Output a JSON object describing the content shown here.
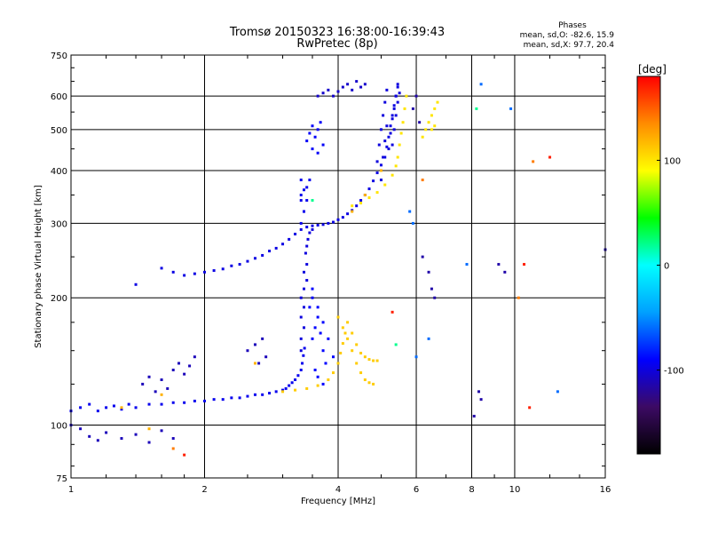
{
  "chart_data": {
    "type": "scatter",
    "title": "Tromsø 20150323 16:38:00-16:39:43",
    "subtitle": "RwPretec (8p)",
    "xlabel": "Frequency [MHz]",
    "ylabel": "Stationary phase Virtual Height [km]",
    "x_scale": "log",
    "y_scale": "log",
    "xlim": [
      1,
      16
    ],
    "ylim": [
      75,
      750
    ],
    "x_ticks": [
      {
        "value": 1,
        "label": "1"
      },
      {
        "value": 2,
        "label": "2"
      },
      {
        "value": 4,
        "label": "4"
      },
      {
        "value": 6,
        "label": "6"
      },
      {
        "value": 8,
        "label": "8"
      },
      {
        "value": 10,
        "label": "10"
      },
      {
        "value": 16,
        "label": "16"
      }
    ],
    "y_ticks": [
      {
        "value": 75,
        "label": "75"
      },
      {
        "value": 100,
        "label": "100"
      },
      {
        "value": 200,
        "label": "200"
      },
      {
        "value": 300,
        "label": "300"
      },
      {
        "value": 400,
        "label": "400"
      },
      {
        "value": 500,
        "label": "500"
      },
      {
        "value": 600,
        "label": "600"
      },
      {
        "value": 750,
        "label": "750"
      }
    ],
    "grid": true,
    "stats": {
      "heading": "Phases",
      "o_line": "mean, sd,O: -82.6, 15.9",
      "x_line": "mean, sd,X:  97.7, 20.4"
    },
    "colorbar": {
      "label": "[deg]",
      "range": [
        -180,
        180
      ],
      "ticks": [
        {
          "value": 100,
          "label": "100"
        },
        {
          "value": 0,
          "label": "0"
        },
        {
          "value": -100,
          "label": "-100"
        }
      ],
      "stops": [
        "#000000",
        "#3c0a64",
        "#0000ff",
        "#00a0ff",
        "#00ffff",
        "#00ff00",
        "#ffff00",
        "#ff8c00",
        "#ff0000"
      ]
    },
    "series": [
      {
        "phase": -95,
        "points": [
          [
            1.0,
            108
          ],
          [
            1.05,
            110
          ],
          [
            1.1,
            112
          ],
          [
            1.15,
            108
          ],
          [
            1.2,
            110
          ],
          [
            1.25,
            111
          ],
          [
            1.3,
            109
          ],
          [
            1.35,
            112
          ],
          [
            1.4,
            110
          ],
          [
            1.5,
            112
          ],
          [
            1.6,
            112
          ],
          [
            1.7,
            113
          ],
          [
            1.8,
            113
          ],
          [
            1.9,
            114
          ],
          [
            2.0,
            114
          ],
          [
            2.1,
            115
          ],
          [
            2.2,
            115
          ],
          [
            2.3,
            116
          ],
          [
            2.4,
            116
          ],
          [
            2.5,
            117
          ],
          [
            2.6,
            118
          ],
          [
            2.7,
            118
          ],
          [
            2.8,
            119
          ],
          [
            2.9,
            120
          ],
          [
            3.0,
            121
          ],
          [
            3.05,
            122
          ],
          [
            3.1,
            124
          ],
          [
            3.15,
            126
          ],
          [
            3.2,
            128
          ],
          [
            3.25,
            131
          ],
          [
            3.3,
            135
          ],
          [
            3.32,
            140
          ],
          [
            3.34,
            146
          ],
          [
            3.36,
            152
          ]
        ]
      },
      {
        "phase": -100,
        "points": [
          [
            3.3,
            150
          ],
          [
            3.3,
            160
          ],
          [
            3.35,
            170
          ],
          [
            3.3,
            180
          ],
          [
            3.35,
            190
          ],
          [
            3.3,
            200
          ],
          [
            3.35,
            210
          ],
          [
            3.4,
            220
          ],
          [
            3.35,
            230
          ],
          [
            3.4,
            240
          ],
          [
            3.38,
            255
          ],
          [
            3.4,
            265
          ],
          [
            3.42,
            275
          ],
          [
            3.45,
            285
          ],
          [
            3.5,
            290
          ]
        ]
      },
      {
        "phase": -90,
        "points": [
          [
            3.5,
            160
          ],
          [
            3.55,
            170
          ],
          [
            3.6,
            180
          ],
          [
            3.65,
            165
          ],
          [
            3.7,
            150
          ],
          [
            3.75,
            140
          ],
          [
            3.5,
            200
          ],
          [
            3.6,
            190
          ],
          [
            3.7,
            175
          ],
          [
            3.8,
            160
          ],
          [
            3.9,
            145
          ],
          [
            3.55,
            135
          ],
          [
            3.6,
            130
          ],
          [
            3.7,
            125
          ],
          [
            3.45,
            190
          ],
          [
            3.5,
            210
          ]
        ]
      },
      {
        "phase": -98,
        "points": [
          [
            1.4,
            215
          ],
          [
            1.6,
            235
          ],
          [
            1.7,
            230
          ],
          [
            1.8,
            226
          ],
          [
            1.9,
            228
          ],
          [
            2.0,
            230
          ],
          [
            2.1,
            232
          ],
          [
            2.2,
            234
          ],
          [
            2.3,
            238
          ],
          [
            2.4,
            240
          ],
          [
            2.5,
            244
          ],
          [
            2.6,
            248
          ],
          [
            2.7,
            252
          ],
          [
            2.8,
            258
          ],
          [
            2.9,
            262
          ],
          [
            3.0,
            268
          ],
          [
            3.1,
            275
          ],
          [
            3.2,
            283
          ],
          [
            3.3,
            290
          ],
          [
            3.4,
            294
          ],
          [
            3.5,
            296
          ],
          [
            3.6,
            297
          ],
          [
            3.7,
            298
          ],
          [
            3.8,
            300
          ],
          [
            3.9,
            302
          ],
          [
            4.0,
            306
          ],
          [
            4.1,
            310
          ],
          [
            4.2,
            316
          ],
          [
            4.3,
            322
          ],
          [
            4.4,
            330
          ],
          [
            4.5,
            340
          ],
          [
            4.6,
            350
          ],
          [
            4.7,
            362
          ],
          [
            4.8,
            378
          ],
          [
            4.9,
            395
          ],
          [
            5.0,
            412
          ],
          [
            5.1,
            430
          ],
          [
            5.15,
            455
          ],
          [
            5.2,
            480
          ],
          [
            5.25,
            510
          ],
          [
            5.3,
            540
          ],
          [
            5.35,
            570
          ],
          [
            5.4,
            600
          ],
          [
            5.45,
            630
          ]
        ]
      },
      {
        "phase": -95,
        "points": [
          [
            3.3,
            300
          ],
          [
            3.35,
            320
          ],
          [
            3.3,
            340
          ],
          [
            3.35,
            360
          ],
          [
            3.3,
            380
          ],
          [
            3.35,
            320
          ],
          [
            3.4,
            340
          ],
          [
            3.3,
            350
          ],
          [
            3.4,
            365
          ],
          [
            3.45,
            380
          ]
        ]
      },
      {
        "phase": -100,
        "points": [
          [
            4.9,
            420
          ],
          [
            4.95,
            460
          ],
          [
            5.0,
            500
          ],
          [
            5.05,
            540
          ],
          [
            5.1,
            580
          ],
          [
            5.15,
            620
          ],
          [
            5.2,
            450
          ],
          [
            5.25,
            490
          ],
          [
            5.3,
            530
          ],
          [
            5.35,
            560
          ],
          [
            5.4,
            600
          ],
          [
            5.45,
            640
          ],
          [
            5.0,
            380
          ],
          [
            5.05,
            430
          ],
          [
            5.1,
            470
          ],
          [
            5.15,
            510
          ],
          [
            5.3,
            460
          ],
          [
            5.35,
            500
          ],
          [
            5.4,
            540
          ],
          [
            5.45,
            580
          ],
          [
            5.5,
            610
          ]
        ]
      },
      {
        "phase": -92,
        "points": [
          [
            3.4,
            470
          ],
          [
            3.45,
            490
          ],
          [
            3.5,
            510
          ],
          [
            3.55,
            480
          ],
          [
            3.6,
            500
          ],
          [
            3.65,
            520
          ],
          [
            3.7,
            460
          ],
          [
            3.5,
            450
          ],
          [
            3.6,
            440
          ]
        ]
      },
      {
        "phase": -105,
        "points": [
          [
            3.6,
            600
          ],
          [
            3.7,
            610
          ],
          [
            3.8,
            620
          ],
          [
            3.9,
            600
          ],
          [
            4.0,
            615
          ],
          [
            4.1,
            630
          ],
          [
            4.2,
            640
          ],
          [
            4.3,
            620
          ],
          [
            4.4,
            650
          ],
          [
            4.5,
            630
          ],
          [
            4.6,
            640
          ]
        ]
      },
      {
        "phase": 110,
        "points": [
          [
            3.0,
            120
          ],
          [
            3.2,
            121
          ],
          [
            3.4,
            122
          ],
          [
            3.6,
            124
          ],
          [
            3.8,
            128
          ],
          [
            3.9,
            133
          ],
          [
            4.0,
            140
          ],
          [
            4.05,
            148
          ],
          [
            4.1,
            156
          ],
          [
            4.15,
            165
          ],
          [
            4.2,
            175
          ],
          [
            4.3,
            165
          ],
          [
            4.4,
            155
          ],
          [
            4.5,
            148
          ],
          [
            4.6,
            145
          ],
          [
            4.7,
            143
          ],
          [
            4.8,
            142
          ],
          [
            4.9,
            142
          ],
          [
            4.0,
            180
          ],
          [
            4.1,
            170
          ],
          [
            4.2,
            160
          ],
          [
            4.3,
            150
          ],
          [
            4.4,
            140
          ],
          [
            4.5,
            133
          ],
          [
            4.6,
            128
          ],
          [
            4.7,
            126
          ],
          [
            4.8,
            125
          ]
        ]
      },
      {
        "phase": 100,
        "points": [
          [
            4.3,
            330
          ],
          [
            4.5,
            335
          ],
          [
            4.7,
            345
          ],
          [
            4.9,
            355
          ],
          [
            5.1,
            370
          ],
          [
            5.3,
            390
          ],
          [
            5.4,
            410
          ],
          [
            5.45,
            430
          ],
          [
            5.5,
            460
          ],
          [
            5.55,
            490
          ],
          [
            5.6,
            520
          ],
          [
            5.65,
            560
          ],
          [
            5.7,
            600
          ],
          [
            6.2,
            480
          ],
          [
            6.3,
            500
          ],
          [
            6.4,
            520
          ],
          [
            6.5,
            540
          ],
          [
            6.6,
            560
          ],
          [
            6.7,
            580
          ],
          [
            6.5,
            500
          ],
          [
            6.6,
            510
          ]
        ]
      },
      {
        "phase": 120,
        "points": [
          [
            1.3,
            110
          ],
          [
            1.5,
            98
          ],
          [
            1.6,
            118
          ],
          [
            2.6,
            140
          ],
          [
            4.6,
            350
          ],
          [
            4.3,
            320
          ],
          [
            5.0,
            400
          ]
        ]
      },
      {
        "phase": -110,
        "points": [
          [
            1.45,
            125
          ],
          [
            1.5,
            130
          ],
          [
            1.55,
            120
          ],
          [
            1.6,
            128
          ],
          [
            1.65,
            122
          ],
          [
            1.7,
            135
          ],
          [
            1.75,
            140
          ],
          [
            1.8,
            132
          ],
          [
            1.85,
            138
          ],
          [
            1.9,
            145
          ],
          [
            2.5,
            150
          ],
          [
            2.6,
            155
          ],
          [
            2.65,
            140
          ],
          [
            2.7,
            160
          ],
          [
            2.75,
            145
          ]
        ]
      },
      {
        "phase": -110,
        "points": [
          [
            1.0,
            100
          ],
          [
            1.05,
            98
          ],
          [
            1.1,
            94
          ],
          [
            1.15,
            92
          ],
          [
            1.2,
            96
          ],
          [
            1.3,
            93
          ],
          [
            1.4,
            95
          ],
          [
            1.5,
            91
          ],
          [
            1.6,
            97
          ],
          [
            1.7,
            93
          ]
        ]
      },
      {
        "phase": -115,
        "points": [
          [
            5.9,
            560
          ],
          [
            6.0,
            600
          ],
          [
            6.1,
            520
          ],
          [
            6.2,
            250
          ],
          [
            6.4,
            230
          ],
          [
            6.5,
            210
          ],
          [
            6.6,
            200
          ],
          [
            8.3,
            120
          ],
          [
            8.4,
            115
          ],
          [
            9.2,
            240
          ],
          [
            9.5,
            230
          ],
          [
            8.1,
            105
          ],
          [
            16.0,
            260
          ]
        ]
      },
      {
        "phase": -60,
        "points": [
          [
            5.8,
            320
          ],
          [
            5.9,
            300
          ],
          [
            6.4,
            160
          ],
          [
            6.0,
            145
          ],
          [
            8.4,
            640
          ],
          [
            9.8,
            560
          ],
          [
            12.5,
            120
          ],
          [
            7.8,
            240
          ]
        ]
      },
      {
        "phase": 170,
        "points": [
          [
            1.8,
            85
          ],
          [
            5.3,
            185
          ],
          [
            10.5,
            240
          ],
          [
            10.8,
            110
          ],
          [
            12.0,
            430
          ]
        ]
      },
      {
        "phase": 140,
        "points": [
          [
            1.7,
            88
          ],
          [
            6.2,
            380
          ],
          [
            10.2,
            200
          ],
          [
            11.0,
            420
          ]
        ]
      },
      {
        "phase": 20,
        "points": [
          [
            5.4,
            155
          ],
          [
            3.5,
            340
          ],
          [
            8.2,
            560
          ]
        ]
      }
    ]
  }
}
